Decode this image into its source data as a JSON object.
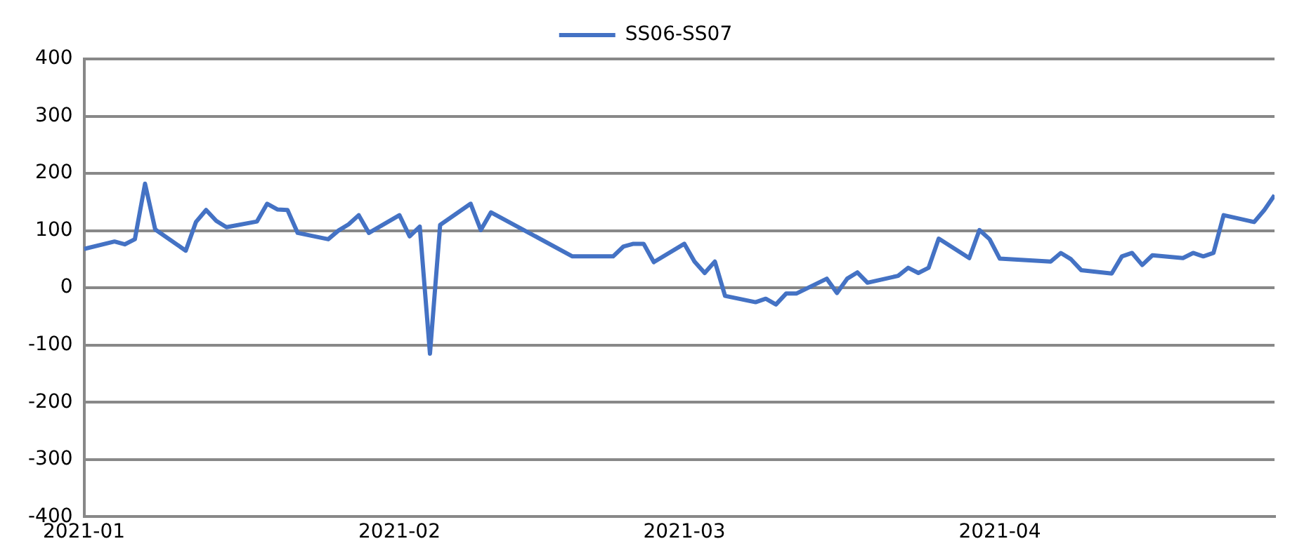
{
  "chart_data": {
    "type": "line",
    "x": [
      "2021-01-01",
      "2021-01-04",
      "2021-01-05",
      "2021-01-06",
      "2021-01-07",
      "2021-01-08",
      "2021-01-11",
      "2021-01-12",
      "2021-01-13",
      "2021-01-14",
      "2021-01-15",
      "2021-01-18",
      "2021-01-19",
      "2021-01-20",
      "2021-01-21",
      "2021-01-22",
      "2021-01-25",
      "2021-01-26",
      "2021-01-27",
      "2021-01-28",
      "2021-01-29",
      "2021-02-01",
      "2021-02-02",
      "2021-02-03",
      "2021-02-04",
      "2021-02-05",
      "2021-02-08",
      "2021-02-09",
      "2021-02-10",
      "2021-02-18",
      "2021-02-19",
      "2021-02-22",
      "2021-02-23",
      "2021-02-24",
      "2021-02-25",
      "2021-02-26",
      "2021-03-01",
      "2021-03-02",
      "2021-03-03",
      "2021-03-04",
      "2021-03-05",
      "2021-03-08",
      "2021-03-09",
      "2021-03-10",
      "2021-03-11",
      "2021-03-12",
      "2021-03-15",
      "2021-03-16",
      "2021-03-17",
      "2021-03-18",
      "2021-03-19",
      "2021-03-22",
      "2021-03-23",
      "2021-03-24",
      "2021-03-25",
      "2021-03-26",
      "2021-03-29",
      "2021-03-30",
      "2021-03-31",
      "2021-04-01",
      "2021-04-06",
      "2021-04-07",
      "2021-04-08",
      "2021-04-09",
      "2021-04-12",
      "2021-04-13",
      "2021-04-14",
      "2021-04-15",
      "2021-04-16",
      "2021-04-19",
      "2021-04-20",
      "2021-04-21",
      "2021-04-22",
      "2021-04-23",
      "2021-04-26",
      "2021-04-27",
      "2021-04-28"
    ],
    "series": [
      {
        "name": "SS06-SS07",
        "color": "#4472c4",
        "values": [
          68,
          81,
          76,
          85,
          182,
          102,
          65,
          115,
          136,
          117,
          106,
          116,
          147,
          137,
          136,
          96,
          85,
          100,
          111,
          127,
          96,
          127,
          90,
          107,
          -115,
          110,
          147,
          101,
          132,
          55,
          55,
          55,
          72,
          77,
          77,
          45,
          77,
          46,
          26,
          46,
          -14,
          -25,
          -19,
          -29,
          -10,
          -10,
          16,
          -9,
          16,
          27,
          9,
          21,
          35,
          26,
          35,
          86,
          52,
          101,
          85,
          51,
          46,
          61,
          50,
          31,
          25,
          55,
          61,
          40,
          57,
          52,
          61,
          55,
          61,
          127,
          115,
          136,
          162
        ]
      }
    ],
    "xlim": [
      "2021-01-01",
      "2021-04-28"
    ],
    "xticks": [
      "2021-01",
      "2021-02",
      "2021-03",
      "2021-04"
    ],
    "ylim": [
      -400,
      400
    ],
    "yticks": [
      -400,
      -300,
      -200,
      -100,
      0,
      100,
      200,
      300,
      400
    ],
    "grid": "y",
    "legend": "top",
    "marker": "none",
    "line_style": "solid"
  }
}
